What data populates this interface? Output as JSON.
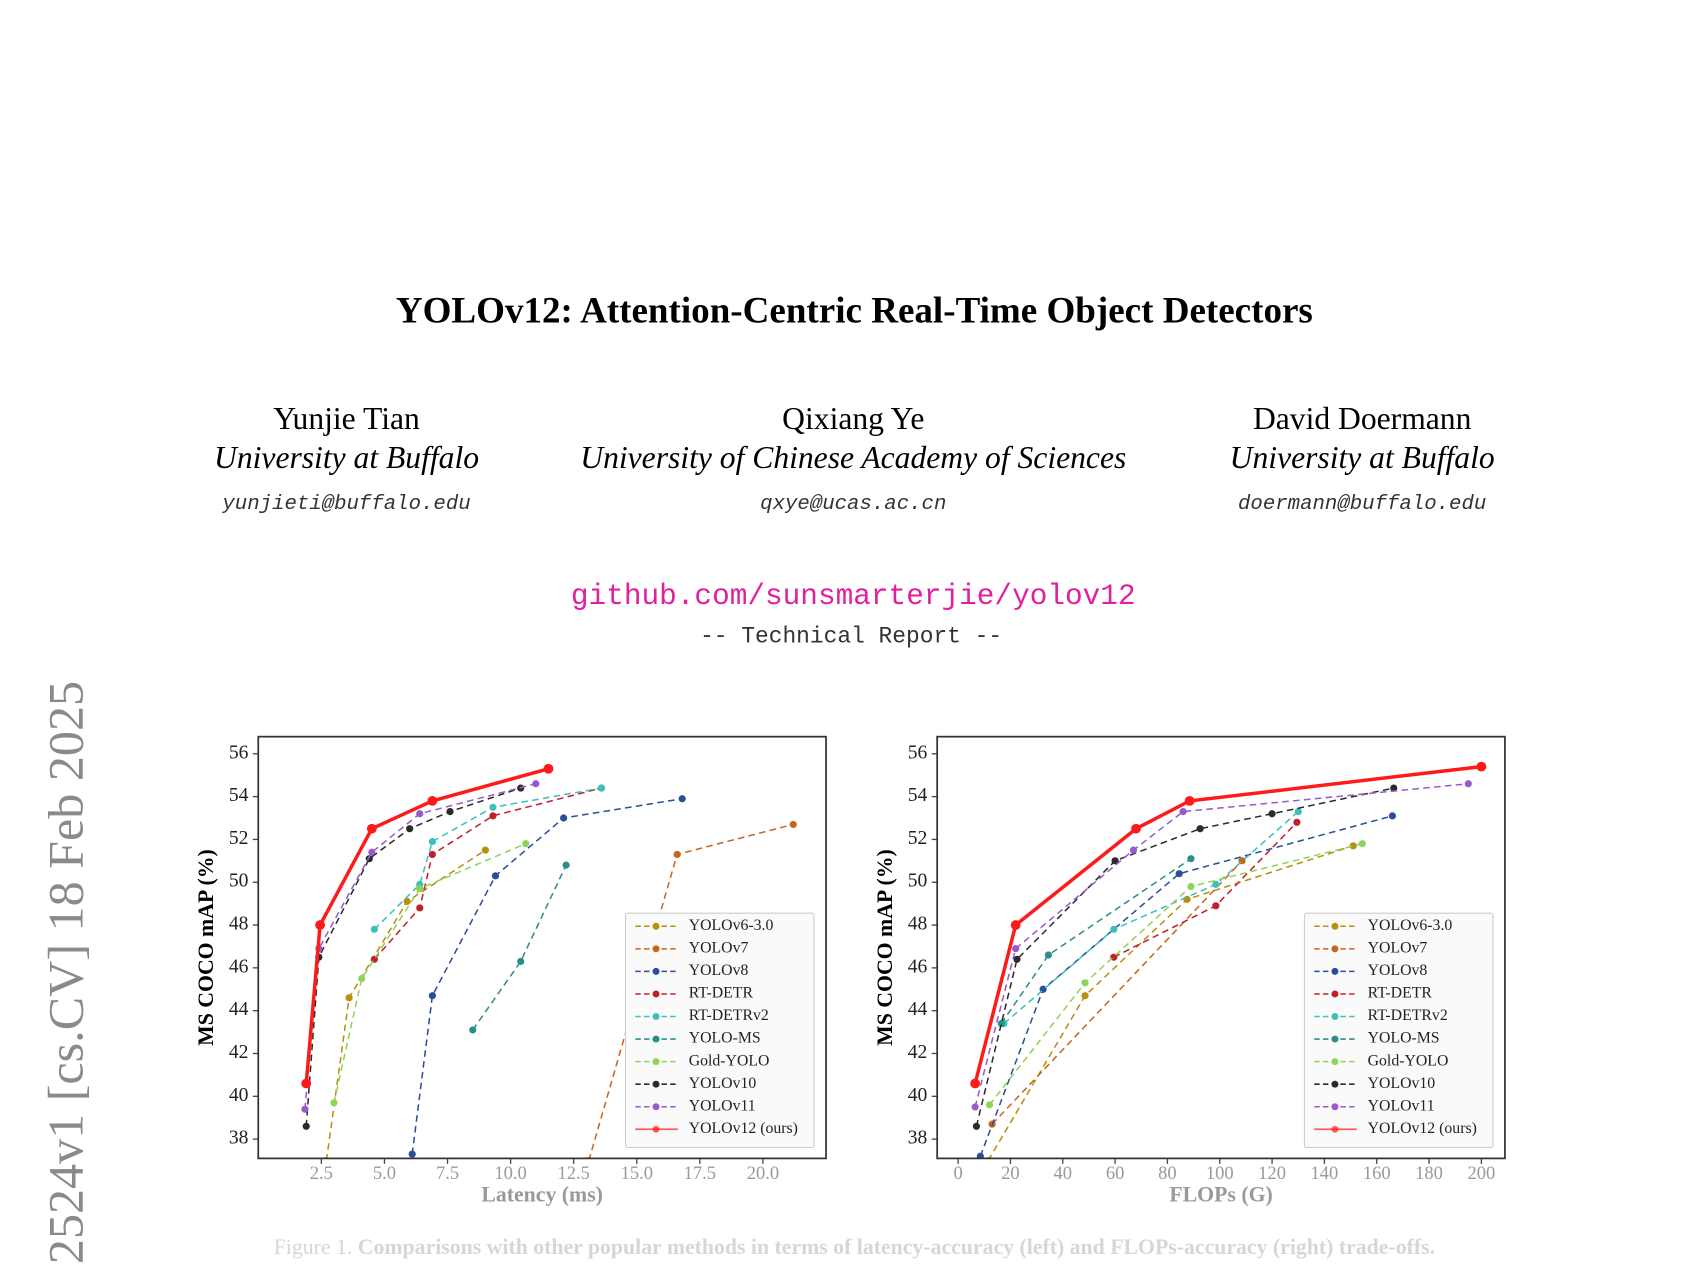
{
  "sidebar": "2524v1  [cs.CV]  18 Feb 2025",
  "header": {
    "title": "YOLOv12: Attention-Centric Real-Time Object Detectors",
    "authors": [
      {
        "name": "Yunjie Tian",
        "affiliation": "University at Buffalo",
        "email": "yunjieti@buffalo.edu"
      },
      {
        "name": "Qixiang Ye",
        "affiliation": "University of Chinese Academy of Sciences",
        "email": "qxye@ucas.ac.cn"
      },
      {
        "name": "David Doermann",
        "affiliation": "University at Buffalo",
        "email": "doermann@buffalo.edu"
      }
    ],
    "link": "github.com/sunsmarterjie/yolov12",
    "report": "-- Technical Report --"
  },
  "chart_data": [
    {
      "type": "line",
      "xlabel": "Latency (ms)",
      "ylabel": "MS COCO mAP (%)",
      "xlim": [
        0,
        22.5
      ],
      "ylim": [
        37.1,
        56.8
      ],
      "xticks": [
        2.5,
        {
          "value": 5,
          "label": "5.0"
        },
        7.5,
        {
          "value": 10,
          "label": "10.0"
        },
        12.5,
        {
          "value": 15,
          "label": "15.0"
        },
        17.5,
        {
          "value": 20,
          "label": "20.0"
        }
      ],
      "yticks": [
        38,
        40,
        42,
        44,
        46,
        48,
        50,
        52,
        54,
        56
      ],
      "legend": "lower right",
      "series": [
        {
          "name": "YOLOv6-3.0",
          "color": "#b8900c",
          "line_style": "dashed",
          "x": [
            2.7,
            3.6,
            5.9,
            9.0
          ],
          "values": [
            37.0,
            44.6,
            49.1,
            51.5
          ]
        },
        {
          "name": "YOLOv7",
          "color": "#c8651b",
          "line_style": "dashed",
          "x": [
            13.1,
            16.6,
            21.2
          ],
          "values": [
            37.0,
            51.3,
            52.7
          ]
        },
        {
          "name": "YOLOv8",
          "color": "#2a4d9c",
          "line_style": "dashed",
          "x": [
            6.1,
            6.9,
            9.4,
            12.1,
            16.8
          ],
          "values": [
            37.3,
            44.7,
            50.3,
            53.0,
            53.9
          ]
        },
        {
          "name": "RT-DETR",
          "color": "#c0202a",
          "line_style": "dashed",
          "x": [
            4.6,
            6.4,
            6.9,
            9.3,
            13.6
          ],
          "values": [
            46.4,
            48.8,
            51.3,
            53.1,
            54.4
          ]
        },
        {
          "name": "RT-DETRv2",
          "color": "#3cc0b8",
          "line_style": "dashed",
          "x": [
            4.6,
            6.4,
            6.9,
            9.3,
            13.6
          ],
          "values": [
            47.8,
            49.9,
            51.9,
            53.5,
            54.4
          ]
        },
        {
          "name": "YOLO-MS",
          "color": "#2a8f88",
          "line_style": "dashed",
          "x": [
            8.5,
            10.4,
            12.2
          ],
          "values": [
            43.1,
            46.3,
            50.8
          ]
        },
        {
          "name": "Gold-YOLO",
          "color": "#8fd45a",
          "line_style": "dashed",
          "x": [
            3.0,
            4.1,
            6.4,
            10.6
          ],
          "values": [
            39.7,
            45.5,
            49.7,
            51.8
          ]
        },
        {
          "name": "YOLOv10",
          "color": "#2b2b2b",
          "line_style": "dashed",
          "x": [
            1.9,
            2.4,
            4.4,
            6.0,
            7.6,
            10.4
          ],
          "values": [
            38.6,
            46.5,
            51.1,
            52.5,
            53.3,
            54.4
          ]
        },
        {
          "name": "YOLOv11",
          "color": "#9b59d0",
          "line_style": "dashed",
          "x": [
            1.85,
            2.4,
            4.5,
            6.4,
            11.0
          ],
          "values": [
            39.4,
            46.9,
            51.4,
            53.2,
            54.6
          ]
        },
        {
          "name": "YOLOv12 (ours)",
          "color": "#ff1a1a",
          "line_style": "solid",
          "x": [
            1.9,
            2.45,
            4.5,
            6.9,
            11.5
          ],
          "values": [
            40.6,
            48.0,
            52.5,
            53.8,
            55.3
          ]
        }
      ]
    },
    {
      "type": "line",
      "xlabel": "FLOPs (G)",
      "ylabel": "MS COCO mAP (%)",
      "xlim": [
        -8,
        209
      ],
      "ylim": [
        37.1,
        56.8
      ],
      "xticks": [
        0,
        20,
        40,
        60,
        80,
        100,
        120,
        140,
        160,
        180,
        200
      ],
      "yticks": [
        38,
        40,
        42,
        44,
        46,
        48,
        50,
        52,
        54,
        56
      ],
      "legend": "lower right",
      "series": [
        {
          "name": "YOLOv6-3.0",
          "color": "#b8900c",
          "line_style": "dashed",
          "x": [
            11.5,
            48.5,
            87.5,
            151
          ],
          "values": [
            37.0,
            44.7,
            49.2,
            51.7
          ]
        },
        {
          "name": "YOLOv7",
          "color": "#c8651b",
          "line_style": "dashed",
          "x": [
            13,
            108.5
          ],
          "values": [
            38.7,
            51.0
          ]
        },
        {
          "name": "YOLOv8",
          "color": "#2a4d9c",
          "line_style": "dashed",
          "x": [
            8.5,
            32.5,
            84.5,
            166
          ],
          "values": [
            37.2,
            45.0,
            50.4,
            53.1
          ]
        },
        {
          "name": "RT-DETR",
          "color": "#c0202a",
          "line_style": "dashed",
          "x": [
            59.5,
            98.5,
            129.5
          ],
          "values": [
            46.5,
            48.9,
            52.8
          ]
        },
        {
          "name": "RT-DETRv2",
          "color": "#3cc0b8",
          "line_style": "dashed",
          "x": [
            17.5,
            59.5,
            98.5,
            130
          ],
          "values": [
            43.4,
            47.8,
            49.9,
            53.3
          ]
        },
        {
          "name": "YOLO-MS",
          "color": "#2a8f88",
          "line_style": "dashed",
          "x": [
            16.5,
            34.5,
            89
          ],
          "values": [
            43.4,
            46.6,
            51.1
          ]
        },
        {
          "name": "Gold-YOLO",
          "color": "#8fd45a",
          "line_style": "dashed",
          "x": [
            12,
            48.5,
            89,
            154.5
          ],
          "values": [
            39.6,
            45.3,
            49.8,
            51.8
          ]
        },
        {
          "name": "YOLOv10",
          "color": "#2b2b2b",
          "line_style": "dashed",
          "x": [
            7,
            22.5,
            60,
            92.5,
            120,
            166.5
          ],
          "values": [
            38.6,
            46.4,
            51.0,
            52.5,
            53.2,
            54.4
          ]
        },
        {
          "name": "YOLOv11",
          "color": "#9b59d0",
          "line_style": "dashed",
          "x": [
            6.5,
            22,
            67,
            86,
            195
          ],
          "values": [
            39.5,
            46.9,
            51.5,
            53.3,
            54.6
          ]
        },
        {
          "name": "YOLOv12 (ours)",
          "color": "#ff1a1a",
          "line_style": "solid",
          "x": [
            6.5,
            22,
            68,
            88.5,
            200
          ],
          "values": [
            40.6,
            48.0,
            52.5,
            53.8,
            55.4
          ]
        }
      ]
    }
  ],
  "caption": {
    "label": "Figure 1.",
    "text": "Comparisons with other popular methods in terms of latency-accuracy (left) and FLOPs-accuracy (right) trade-offs."
  }
}
